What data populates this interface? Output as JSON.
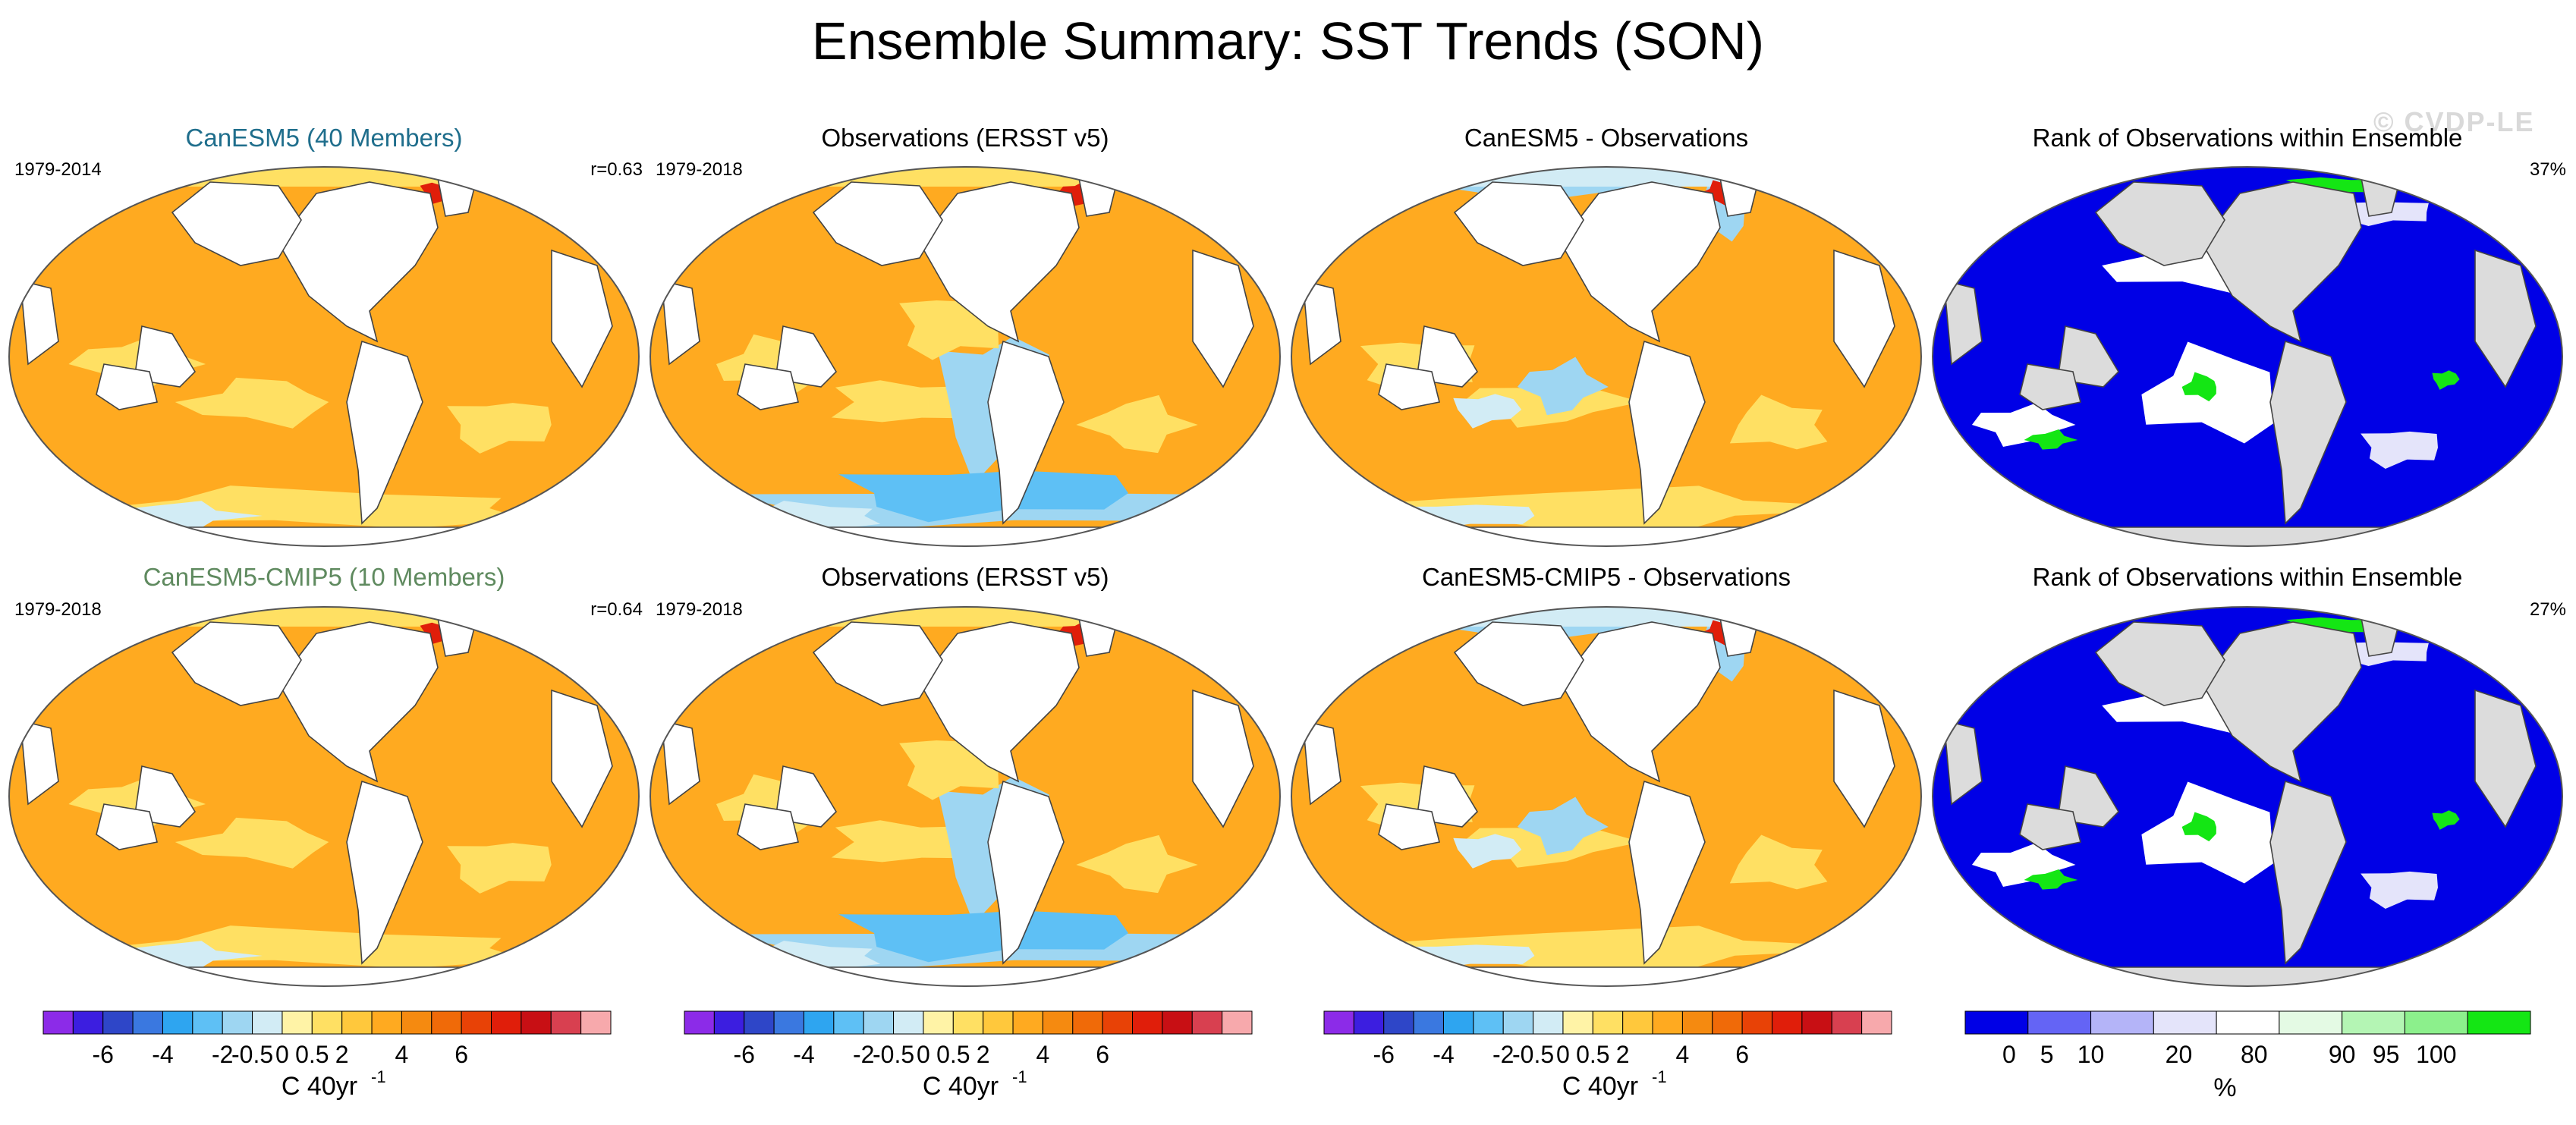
{
  "title": "Ensemble Summary: SST Trends (SON)",
  "watermark": "© CVDP-LE",
  "chart_data": [
    {
      "type": "heatmap",
      "panel": "row1-col1",
      "title": "CanESM5 (40 Members)",
      "title_color": "#1f6e8c",
      "period": "1979-2014",
      "stat": "r=0.63",
      "projection": "Robinson",
      "dominant_class": "0.5 to 2",
      "colorbar": "trend"
    },
    {
      "type": "heatmap",
      "panel": "row1-col2",
      "title": "Observations (ERSST v5)",
      "title_color": "#000000",
      "period": "1979-2018",
      "stat": "",
      "projection": "Robinson",
      "dominant_class": "0.5 to 2",
      "colorbar": "trend"
    },
    {
      "type": "heatmap",
      "panel": "row1-col3",
      "title": "CanESM5 - Observations",
      "title_color": "#000000",
      "period": "",
      "stat": "",
      "projection": "Robinson",
      "dominant_class": "0.5 to 2",
      "colorbar": "trend"
    },
    {
      "type": "heatmap",
      "panel": "row1-col4",
      "title": "Rank of Observations within Ensemble",
      "title_color": "#000000",
      "period": "",
      "stat": "37%",
      "projection": "Robinson",
      "dominant_class": "0 to 5",
      "colorbar": "rank"
    },
    {
      "type": "heatmap",
      "panel": "row2-col1",
      "title": "CanESM5-CMIP5 (10 Members)",
      "title_color": "#5f8a5f",
      "period": "1979-2018",
      "stat": "r=0.64",
      "projection": "Robinson",
      "dominant_class": "0.5 to 2",
      "colorbar": "trend"
    },
    {
      "type": "heatmap",
      "panel": "row2-col2",
      "title": "Observations (ERSST v5)",
      "title_color": "#000000",
      "period": "1979-2018",
      "stat": "",
      "projection": "Robinson",
      "dominant_class": "0.5 to 2",
      "colorbar": "trend"
    },
    {
      "type": "heatmap",
      "panel": "row2-col3",
      "title": "CanESM5-CMIP5 - Observations",
      "title_color": "#000000",
      "period": "",
      "stat": "",
      "projection": "Robinson",
      "dominant_class": "0.5 to 2",
      "colorbar": "trend"
    },
    {
      "type": "heatmap",
      "panel": "row2-col4",
      "title": "Rank of Observations within Ensemble",
      "title_color": "#000000",
      "period": "",
      "stat": "27%",
      "projection": "Robinson",
      "dominant_class": "0 to 5",
      "colorbar": "rank"
    }
  ],
  "colorbars": {
    "trend": {
      "label": "C 40yr",
      "label_exponent": "-1",
      "tick_labels": [
        "-6",
        "-4",
        "-2",
        "-0.5",
        "0",
        "0.5",
        "2",
        "4",
        "6"
      ],
      "colors": [
        "#8c2be8",
        "#3c1ee0",
        "#2e46c8",
        "#3a78e0",
        "#2ea5f0",
        "#5ec0f5",
        "#9ed6f2",
        "#d2ecf5",
        "#fff3a6",
        "#ffe063",
        "#ffc83c",
        "#ffaa20",
        "#f58a10",
        "#f06a08",
        "#e84206",
        "#e01e0a",
        "#c80f14",
        "#d84050",
        "#f7a9ac"
      ]
    },
    "rank": {
      "label": "%",
      "tick_labels": [
        "0",
        "5",
        "10",
        "20",
        "80",
        "90",
        "95",
        "100"
      ],
      "colors": [
        "#0000e6",
        "#6464f5",
        "#b4b4f8",
        "#e4e4fa",
        "#ffffff",
        "#e4fae4",
        "#b4f5b4",
        "#8cf08c",
        "#14e614"
      ]
    }
  }
}
